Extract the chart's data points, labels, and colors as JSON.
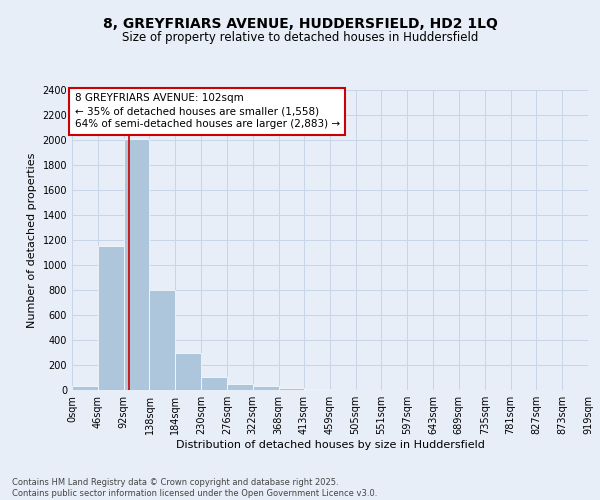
{
  "title_line1": "8, GREYFRIARS AVENUE, HUDDERSFIELD, HD2 1LQ",
  "title_line2": "Size of property relative to detached houses in Huddersfield",
  "xlabel": "Distribution of detached houses by size in Huddersfield",
  "ylabel": "Number of detached properties",
  "bar_values": [
    30,
    1150,
    2010,
    800,
    300,
    105,
    45,
    30,
    15,
    5,
    0,
    0,
    0,
    0,
    0,
    0,
    0,
    0,
    0,
    0
  ],
  "bin_edges": [
    0,
    46,
    92,
    138,
    184,
    230,
    276,
    322,
    368,
    413,
    459,
    505,
    551,
    597,
    643,
    689,
    735,
    781,
    827,
    873,
    919
  ],
  "bin_labels": [
    "0sqm",
    "46sqm",
    "92sqm",
    "138sqm",
    "184sqm",
    "230sqm",
    "276sqm",
    "322sqm",
    "368sqm",
    "413sqm",
    "459sqm",
    "505sqm",
    "551sqm",
    "597sqm",
    "643sqm",
    "689sqm",
    "735sqm",
    "781sqm",
    "827sqm",
    "873sqm",
    "919sqm"
  ],
  "property_size": 102,
  "bar_color": "#aec6dc",
  "bar_edgecolor": "white",
  "vline_color": "#cc0000",
  "annotation_line1": "8 GREYFRIARS AVENUE: 102sqm",
  "annotation_line2": "← 35% of detached houses are smaller (1,558)",
  "annotation_line3": "64% of semi-detached houses are larger (2,883) →",
  "annotation_box_edgecolor": "#cc0000",
  "annotation_box_facecolor": "#ffffff",
  "grid_color": "#c8d4e8",
  "background_color": "#e8eef8",
  "ylim": [
    0,
    2400
  ],
  "yticks": [
    0,
    200,
    400,
    600,
    800,
    1000,
    1200,
    1400,
    1600,
    1800,
    2000,
    2200,
    2400
  ],
  "footer_line1": "Contains HM Land Registry data © Crown copyright and database right 2025.",
  "footer_line2": "Contains public sector information licensed under the Open Government Licence v3.0.",
  "title_fontsize": 10,
  "subtitle_fontsize": 8.5,
  "axis_label_fontsize": 8,
  "tick_fontsize": 7,
  "annotation_fontsize": 7.5,
  "footer_fontsize": 6
}
